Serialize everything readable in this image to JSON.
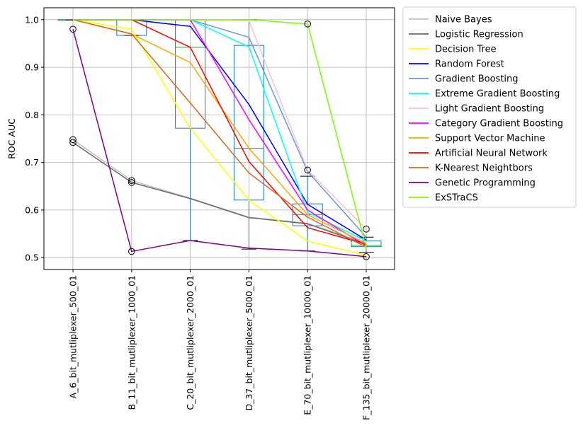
{
  "chart_data": {
    "type": "line",
    "ylabel": "ROC AUC",
    "xlabel": "",
    "ylim": [
      0.475,
      1.025
    ],
    "yticks": [
      "0.5",
      "0.6",
      "0.7",
      "0.8",
      "0.9",
      "1.0"
    ],
    "grid": true,
    "legend_position": "outside right",
    "categories": [
      "A_6_bit_mutliplexer_500_01",
      "B_11_bit_mutliplexer_1000_01",
      "C_20_bit_mutliplexer_2000_01",
      "D_37_bit_mutliplexer_5000_01",
      "E_70_bit_mutliplexer_10000_01",
      "F_135_bit_mutliplexer_20000_01"
    ],
    "series": [
      {
        "name": "Naive Bayes",
        "color": "#c0c0c0",
        "values": [
          0.748,
          0.662,
          0.625,
          0.585,
          0.572,
          0.53
        ]
      },
      {
        "name": "Logistic Regression",
        "color": "#696969",
        "values": [
          0.742,
          0.658,
          0.624,
          0.584,
          0.571,
          0.528
        ]
      },
      {
        "name": "Decision Tree",
        "color": "#ffff00",
        "values": [
          1.0,
          0.98,
          0.772,
          0.621,
          0.535,
          0.505
        ]
      },
      {
        "name": "Random Forest",
        "color": "#0000ff",
        "values": [
          1.0,
          1.0,
          0.986,
          0.822,
          0.612,
          0.537
        ]
      },
      {
        "name": "Gradient Boosting",
        "color": "#6495ed",
        "values": [
          1.0,
          1.0,
          1.0,
          0.963,
          0.681,
          0.543
        ]
      },
      {
        "name": "Extreme Gradient Boosting",
        "color": "#00ffff",
        "values": [
          1.0,
          1.0,
          1.0,
          0.943,
          0.595,
          0.535
        ]
      },
      {
        "name": "Light Gradient Boosting",
        "color": "#ffc0cb",
        "values": [
          1.0,
          1.0,
          1.0,
          0.998,
          0.684,
          0.56
        ]
      },
      {
        "name": "Category Gradient Boosting",
        "color": "#ff00ff",
        "values": [
          1.0,
          1.0,
          1.0,
          0.79,
          0.6,
          0.525
        ]
      },
      {
        "name": "Support Vector Machine",
        "color": "#ffa500",
        "values": [
          1.0,
          0.97,
          0.91,
          0.73,
          0.59,
          0.53
        ]
      },
      {
        "name": "Artificial Neural Network",
        "color": "#ff0000",
        "values": [
          1.0,
          1.0,
          0.942,
          0.702,
          0.563,
          0.528
        ]
      },
      {
        "name": "K-Nearest Neightbors",
        "color": "#d2691e",
        "values": [
          1.0,
          0.97,
          0.825,
          0.678,
          0.585,
          0.522
        ]
      },
      {
        "name": "Genetic Programming",
        "color": "#800080",
        "values": [
          0.98,
          0.513,
          0.536,
          0.52,
          0.514,
          0.502
        ]
      },
      {
        "name": "ExSTraCS",
        "color": "#7cfc00",
        "values": [
          1.0,
          1.0,
          1.0,
          1.0,
          0.991,
          0.52
        ]
      }
    ],
    "boxplots": [
      {
        "category_index": 0,
        "q1": 0.999,
        "median": 1.0,
        "q3": 1.0,
        "whisker_low": 0.999,
        "whisker_high": 1.0,
        "outliers": [
          0.98,
          0.748,
          0.742
        ]
      },
      {
        "category_index": 1,
        "q1": 0.967,
        "median": 1.0,
        "q3": 1.0,
        "whisker_low": 0.967,
        "whisker_high": 1.0,
        "outliers": [
          0.662,
          0.658,
          0.513
        ]
      },
      {
        "category_index": 2,
        "q1": 0.772,
        "median": 0.942,
        "q3": 1.0,
        "whisker_low": 0.536,
        "whisker_high": 1.0,
        "outliers": []
      },
      {
        "category_index": 3,
        "q1": 0.621,
        "median": 0.73,
        "q3": 0.946,
        "whisker_low": 0.518,
        "whisker_high": 1.0,
        "outliers": []
      },
      {
        "category_index": 4,
        "q1": 0.567,
        "median": 0.59,
        "q3": 0.613,
        "whisker_low": 0.514,
        "whisker_high": 0.671,
        "outliers": [
          0.684,
          0.991
        ]
      },
      {
        "category_index": 5,
        "q1": 0.523,
        "median": 0.526,
        "q3": 0.535,
        "whisker_low": 0.511,
        "whisker_high": 0.543,
        "outliers": [
          0.56,
          0.502
        ]
      }
    ]
  }
}
